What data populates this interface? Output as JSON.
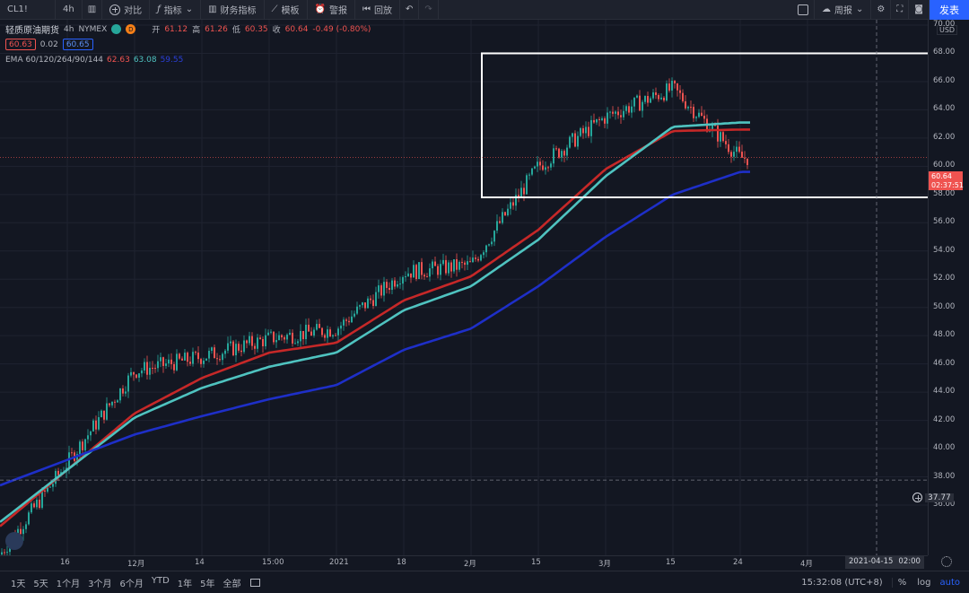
{
  "toolbar": {
    "symbol": "CL1!",
    "interval": "4h",
    "compare": "对比",
    "indicators": "指标",
    "financials": "财务指标",
    "templates": "模板",
    "alert": "警报",
    "replay": "回放",
    "layout": "周报",
    "publish": "发表"
  },
  "legend": {
    "name": "轻质原油期货",
    "interval": "4h",
    "exchange": "NYMEX",
    "badge1": "D",
    "open_label": "开",
    "open": "61.12",
    "high_label": "高",
    "high": "61.26",
    "low_label": "低",
    "low": "60.35",
    "close_label": "收",
    "close": "60.64",
    "change": "-0.49 (-0.80%)",
    "sell": "60.63",
    "spread": "0.02",
    "buy": "60.65",
    "ema_label": "EMA 60/120/264/90/144",
    "ema1": "62.63",
    "ema2": "63.08",
    "ema3": "59.55"
  },
  "price_axis": {
    "currency": "USD",
    "ticks": [
      "70.00",
      "68.00",
      "66.00",
      "64.00",
      "62.00",
      "60.00",
      "58.00",
      "56.00",
      "54.00",
      "52.00",
      "50.00",
      "48.00",
      "46.00",
      "44.00",
      "42.00",
      "40.00",
      "38.00",
      "36.00"
    ],
    "last_price": "60.64",
    "countdown": "02:37:51",
    "level": "37.77"
  },
  "time_axis": {
    "ticks": [
      "16",
      "12月",
      "14",
      "15:00",
      "2021",
      "18",
      "2月",
      "15",
      "3月",
      "15",
      "24",
      "4月"
    ],
    "crosshair_date": "2021-04-15",
    "crosshair_time": "02:00"
  },
  "bottom_bar": {
    "ranges": [
      "1天",
      "5天",
      "1个月",
      "3个月",
      "6个月",
      "YTD",
      "1年",
      "5年",
      "全部"
    ],
    "clock": "15:32:08 (UTC+8)",
    "percent": "%",
    "log": "log",
    "auto": "auto"
  },
  "colors": {
    "bg": "#131722",
    "up": "#26a69a",
    "down": "#ef5350",
    "ema_fast": "#c62828",
    "ema_mid": "#4fc3c0",
    "ema_slow": "#1e2fc8",
    "box": "#ffffff",
    "accent": "#2962ff"
  },
  "chart_data": {
    "type": "line",
    "title": "轻质原油期货 · 4h · NYMEX",
    "xlabel": "",
    "ylabel": "",
    "ylim": [
      35,
      71
    ],
    "x": [
      "16",
      "12月",
      "14",
      "15:00",
      "2021",
      "18",
      "2月",
      "15",
      "3月",
      "15",
      "24"
    ],
    "series": [
      {
        "name": "price",
        "values": [
          39.0,
          45.5,
          46.5,
          47.8,
          48.5,
          52.5,
          53.0,
          60.0,
          63.5,
          65.5,
          60.6
        ]
      },
      {
        "name": "EMA 60",
        "values": [
          38.5,
          42.5,
          45.0,
          46.8,
          47.5,
          50.5,
          52.2,
          55.5,
          59.8,
          62.5,
          62.6
        ]
      },
      {
        "name": "EMA 120",
        "values": [
          38.5,
          42.2,
          44.3,
          45.8,
          46.8,
          49.8,
          51.5,
          54.8,
          59.3,
          62.8,
          63.1
        ]
      },
      {
        "name": "EMA 264",
        "values": [
          39.2,
          41.0,
          42.3,
          43.5,
          44.5,
          47.0,
          48.5,
          51.5,
          55.0,
          58.0,
          59.6
        ]
      }
    ],
    "grid": true,
    "annotation": "rectangle 58–68, late Feb to mid Mar"
  }
}
